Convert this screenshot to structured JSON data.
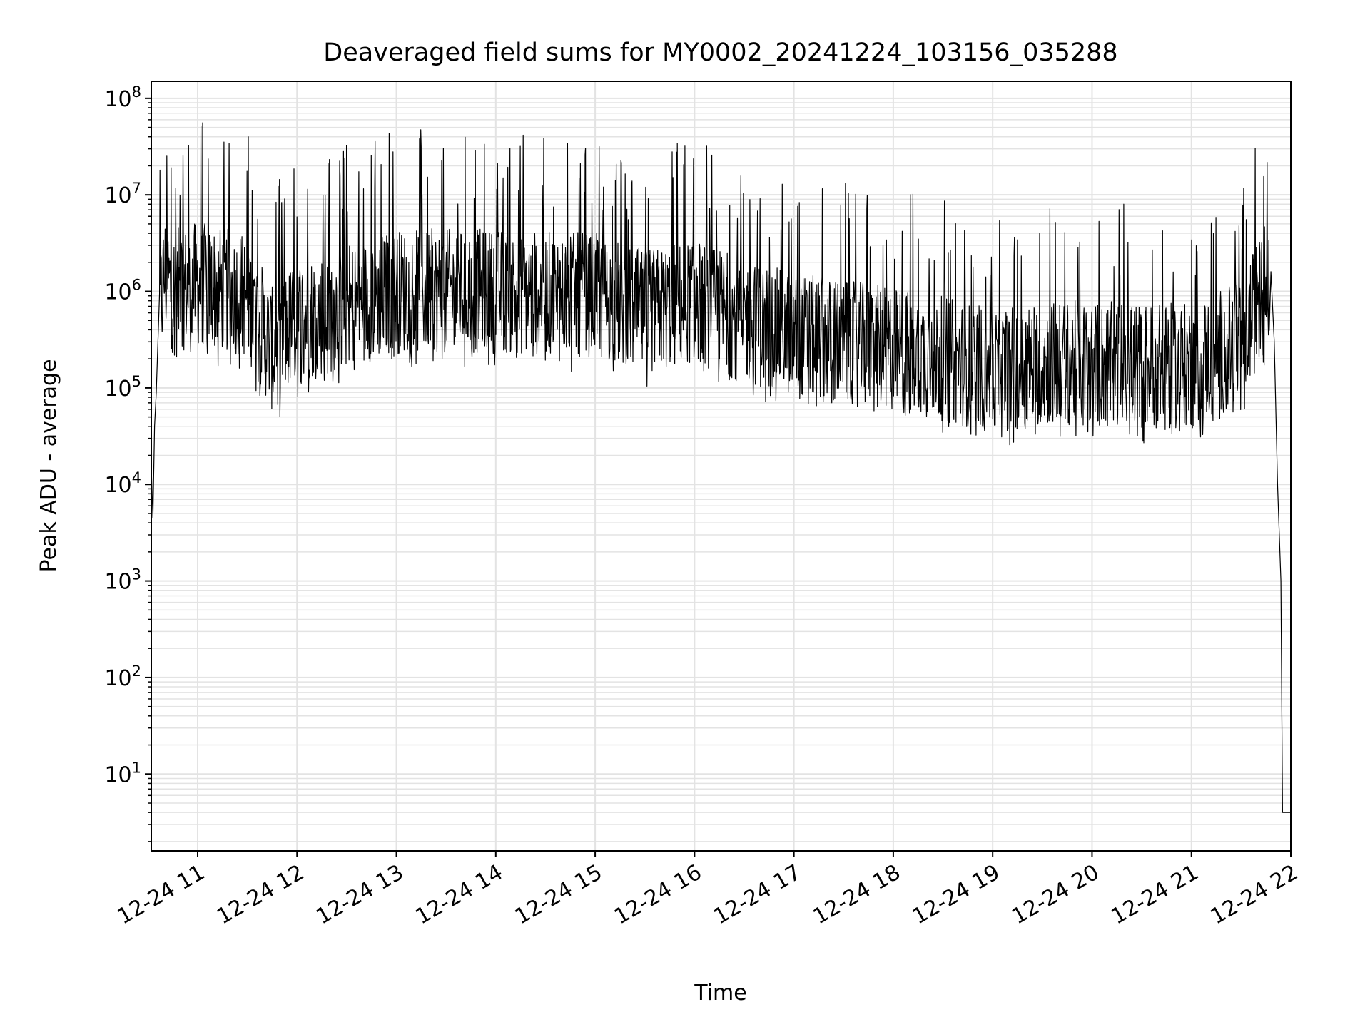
{
  "chart_data": {
    "type": "line",
    "title": "Deaveraged field sums for MY0002_20241224_103156_035288",
    "xlabel": "Time",
    "ylabel": "Peak ADU - average",
    "yscale": "log",
    "ylim": [
      1.6,
      150000000
    ],
    "xlim": [
      "2024-12-24 10:32",
      "2024-12-24 22:00"
    ],
    "grid": true,
    "line_color": "#000000",
    "grid_color": "#e3e3e3",
    "x_ticks": [
      {
        "t": "2024-12-24 11:00",
        "label": "12-24 11"
      },
      {
        "t": "2024-12-24 12:00",
        "label": "12-24 12"
      },
      {
        "t": "2024-12-24 13:00",
        "label": "12-24 13"
      },
      {
        "t": "2024-12-24 14:00",
        "label": "12-24 14"
      },
      {
        "t": "2024-12-24 15:00",
        "label": "12-24 15"
      },
      {
        "t": "2024-12-24 16:00",
        "label": "12-24 16"
      },
      {
        "t": "2024-12-24 17:00",
        "label": "12-24 17"
      },
      {
        "t": "2024-12-24 18:00",
        "label": "12-24 18"
      },
      {
        "t": "2024-12-24 19:00",
        "label": "12-24 19"
      },
      {
        "t": "2024-12-24 20:00",
        "label": "12-24 20"
      },
      {
        "t": "2024-12-24 21:00",
        "label": "12-24 21"
      },
      {
        "t": "2024-12-24 22:00",
        "label": "12-24 22"
      }
    ],
    "y_ticks": [
      {
        "value": 10,
        "base": "10",
        "exp": "1"
      },
      {
        "value": 100,
        "base": "10",
        "exp": "2"
      },
      {
        "value": 1000,
        "base": "10",
        "exp": "3"
      },
      {
        "value": 10000,
        "base": "10",
        "exp": "4"
      },
      {
        "value": 100000,
        "base": "10",
        "exp": "5"
      },
      {
        "value": 1000000,
        "base": "10",
        "exp": "6"
      },
      {
        "value": 10000000,
        "base": "10",
        "exp": "7"
      },
      {
        "value": 100000000,
        "base": "10",
        "exp": "8"
      }
    ],
    "series": [
      {
        "points": [
          [
            "2024-12-24 10:32",
            15000
          ],
          [
            "2024-12-24 10:33",
            4500
          ],
          [
            "2024-12-24 10:34",
            40000
          ],
          [
            "2024-12-24 10:35",
            90000
          ],
          [
            "2024-12-24 10:37",
            600000
          ],
          [
            "2024-12-24 10:40",
            1500000
          ],
          [
            "2024-12-24 10:45",
            1000000
          ],
          [
            "2024-12-24 11:00",
            1200000
          ],
          [
            "2024-12-24 11:30",
            900000
          ],
          [
            "2024-12-24 11:45",
            250000
          ],
          [
            "2024-12-24 12:00",
            500000
          ],
          [
            "2024-12-24 12:30",
            700000
          ],
          [
            "2024-12-24 13:00",
            1000000
          ],
          [
            "2024-12-24 14:00",
            1000000
          ],
          [
            "2024-12-24 15:00",
            900000
          ],
          [
            "2024-12-24 15:30",
            600000
          ],
          [
            "2024-12-24 16:00",
            800000
          ],
          [
            "2024-12-24 16:30",
            500000
          ],
          [
            "2024-12-24 17:00",
            350000
          ],
          [
            "2024-12-24 18:00",
            250000
          ],
          [
            "2024-12-24 18:30",
            200000
          ],
          [
            "2024-12-24 19:00",
            150000
          ],
          [
            "2024-12-24 19:30",
            180000
          ],
          [
            "2024-12-24 20:00",
            180000
          ],
          [
            "2024-12-24 20:30",
            170000
          ],
          [
            "2024-12-24 21:00",
            170000
          ],
          [
            "2024-12-24 21:30",
            300000
          ],
          [
            "2024-12-24 21:45",
            1200000
          ],
          [
            "2024-12-24 21:48",
            1600000
          ],
          [
            "2024-12-24 21:50",
            300000
          ],
          [
            "2024-12-24 21:52",
            10000
          ],
          [
            "2024-12-24 21:54",
            1000
          ],
          [
            "2024-12-24 21:55",
            4
          ],
          [
            "2024-12-24 22:00",
            4
          ]
        ]
      }
    ]
  }
}
